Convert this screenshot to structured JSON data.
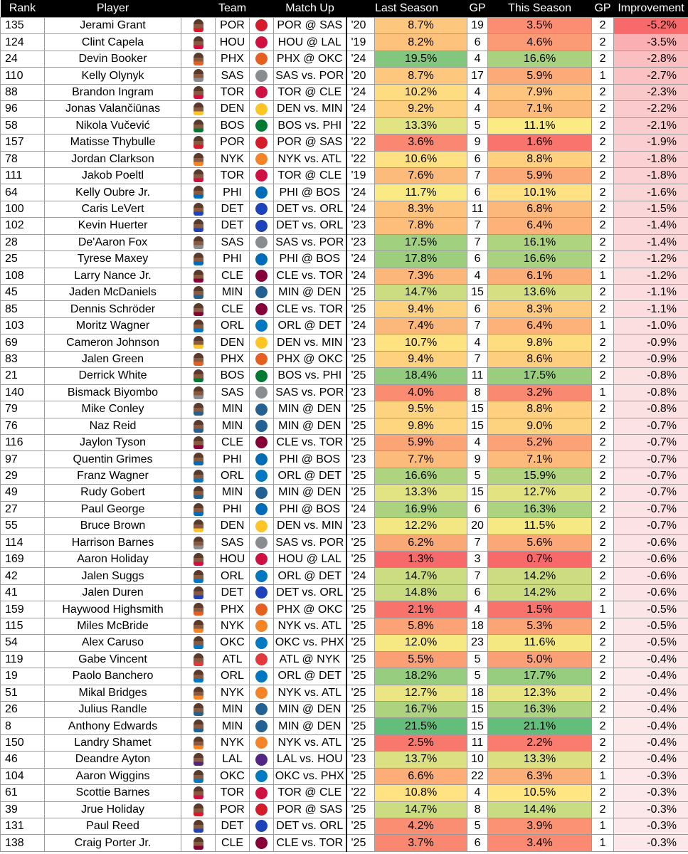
{
  "headers": {
    "rank": "Rank",
    "player": "Player",
    "team": "Team",
    "match": "Match Up",
    "last": "Last Season",
    "gp1": "GP",
    "this": "This Season",
    "gp2": "GP",
    "imp": "Improvement"
  },
  "team_colors": {
    "POR": "#d41c2c",
    "HOU": "#ce1141",
    "PHX": "#e56020",
    "SAS": "#8a8d8f",
    "TOR": "#ce1141",
    "DEN": "#fec524",
    "BOS": "#007a33",
    "NYK": "#f58426",
    "PHI": "#006bb6",
    "DET": "#1d42ba",
    "CLE": "#860038",
    "ORL": "#0077c0",
    "MIN": "#236192",
    "OKC": "#007ac1",
    "ATL": "#e03a3e",
    "LAL": "#552583"
  },
  "rows": [
    {
      "rank": "135",
      "player": "Jerami Grant",
      "team": "POR",
      "match": "POR @ SAS",
      "yr": "'20",
      "last": "8.7%",
      "gp1": "19",
      "this": "3.5%",
      "gp2": "2",
      "imp": "-5.2%"
    },
    {
      "rank": "124",
      "player": "Clint Capela",
      "team": "HOU",
      "match": "HOU @ LAL",
      "yr": "'19",
      "last": "8.2%",
      "gp1": "6",
      "this": "4.6%",
      "gp2": "2",
      "imp": "-3.5%"
    },
    {
      "rank": "24",
      "player": "Devin Booker",
      "team": "PHX",
      "match": "PHX @ OKC",
      "yr": "'24",
      "last": "19.5%",
      "gp1": "4",
      "this": "16.6%",
      "gp2": "2",
      "imp": "-2.8%"
    },
    {
      "rank": "110",
      "player": "Kelly Olynyk",
      "team": "SAS",
      "match": "SAS vs. POR",
      "yr": "'20",
      "last": "8.7%",
      "gp1": "17",
      "this": "5.9%",
      "gp2": "1",
      "imp": "-2.7%"
    },
    {
      "rank": "88",
      "player": "Brandon Ingram",
      "team": "TOR",
      "match": "TOR @ CLE",
      "yr": "'24",
      "last": "10.2%",
      "gp1": "4",
      "this": "7.9%",
      "gp2": "2",
      "imp": "-2.3%"
    },
    {
      "rank": "96",
      "player": "Jonas Valančiūnas",
      "team": "DEN",
      "match": "DEN vs. MIN",
      "yr": "'24",
      "last": "9.2%",
      "gp1": "4",
      "this": "7.1%",
      "gp2": "2",
      "imp": "-2.2%"
    },
    {
      "rank": "58",
      "player": "Nikola Vučević",
      "team": "BOS",
      "match": "BOS vs. PHI",
      "yr": "'22",
      "last": "13.3%",
      "gp1": "5",
      "this": "11.1%",
      "gp2": "2",
      "imp": "-2.1%"
    },
    {
      "rank": "157",
      "player": "Matisse Thybulle",
      "team": "POR",
      "match": "POR @ SAS",
      "yr": "'22",
      "last": "3.6%",
      "gp1": "9",
      "this": "1.6%",
      "gp2": "2",
      "imp": "-1.9%"
    },
    {
      "rank": "78",
      "player": "Jordan Clarkson",
      "team": "NYK",
      "match": "NYK vs. ATL",
      "yr": "'22",
      "last": "10.6%",
      "gp1": "6",
      "this": "8.8%",
      "gp2": "2",
      "imp": "-1.8%"
    },
    {
      "rank": "111",
      "player": "Jakob Poeltl",
      "team": "TOR",
      "match": "TOR @ CLE",
      "yr": "'19",
      "last": "7.6%",
      "gp1": "7",
      "this": "5.9%",
      "gp2": "2",
      "imp": "-1.8%"
    },
    {
      "rank": "64",
      "player": "Kelly Oubre Jr.",
      "team": "PHI",
      "match": "PHI @ BOS",
      "yr": "'24",
      "last": "11.7%",
      "gp1": "6",
      "this": "10.1%",
      "gp2": "2",
      "imp": "-1.6%"
    },
    {
      "rank": "100",
      "player": "Caris LeVert",
      "team": "DET",
      "match": "DET vs. ORL",
      "yr": "'24",
      "last": "8.3%",
      "gp1": "11",
      "this": "6.8%",
      "gp2": "2",
      "imp": "-1.5%"
    },
    {
      "rank": "102",
      "player": "Kevin Huerter",
      "team": "DET",
      "match": "DET vs. ORL",
      "yr": "'23",
      "last": "7.8%",
      "gp1": "7",
      "this": "6.4%",
      "gp2": "2",
      "imp": "-1.4%"
    },
    {
      "rank": "28",
      "player": "De'Aaron Fox",
      "team": "SAS",
      "match": "SAS vs. POR",
      "yr": "'23",
      "last": "17.5%",
      "gp1": "7",
      "this": "16.1%",
      "gp2": "2",
      "imp": "-1.4%"
    },
    {
      "rank": "25",
      "player": "Tyrese Maxey",
      "team": "PHI",
      "match": "PHI @ BOS",
      "yr": "'24",
      "last": "17.8%",
      "gp1": "6",
      "this": "16.6%",
      "gp2": "2",
      "imp": "-1.2%"
    },
    {
      "rank": "108",
      "player": "Larry Nance Jr.",
      "team": "CLE",
      "match": "CLE vs. TOR",
      "yr": "'24",
      "last": "7.3%",
      "gp1": "4",
      "this": "6.1%",
      "gp2": "1",
      "imp": "-1.2%"
    },
    {
      "rank": "45",
      "player": "Jaden McDaniels",
      "team": "MIN",
      "match": "MIN @ DEN",
      "yr": "'25",
      "last": "14.7%",
      "gp1": "15",
      "this": "13.6%",
      "gp2": "2",
      "imp": "-1.1%"
    },
    {
      "rank": "85",
      "player": "Dennis Schröder",
      "team": "CLE",
      "match": "CLE vs. TOR",
      "yr": "'25",
      "last": "9.4%",
      "gp1": "6",
      "this": "8.3%",
      "gp2": "2",
      "imp": "-1.1%"
    },
    {
      "rank": "103",
      "player": "Moritz Wagner",
      "team": "ORL",
      "match": "ORL @ DET",
      "yr": "'24",
      "last": "7.4%",
      "gp1": "7",
      "this": "6.4%",
      "gp2": "1",
      "imp": "-1.0%"
    },
    {
      "rank": "69",
      "player": "Cameron Johnson",
      "team": "DEN",
      "match": "DEN vs. MIN",
      "yr": "'23",
      "last": "10.7%",
      "gp1": "4",
      "this": "9.8%",
      "gp2": "2",
      "imp": "-0.9%"
    },
    {
      "rank": "83",
      "player": "Jalen Green",
      "team": "PHX",
      "match": "PHX @ OKC",
      "yr": "'25",
      "last": "9.4%",
      "gp1": "7",
      "this": "8.6%",
      "gp2": "2",
      "imp": "-0.9%"
    },
    {
      "rank": "21",
      "player": "Derrick White",
      "team": "BOS",
      "match": "BOS vs. PHI",
      "yr": "'25",
      "last": "18.4%",
      "gp1": "11",
      "this": "17.5%",
      "gp2": "2",
      "imp": "-0.8%"
    },
    {
      "rank": "140",
      "player": "Bismack Biyombo",
      "team": "SAS",
      "match": "SAS vs. POR",
      "yr": "'23",
      "last": "4.0%",
      "gp1": "8",
      "this": "3.2%",
      "gp2": "1",
      "imp": "-0.8%"
    },
    {
      "rank": "79",
      "player": "Mike Conley",
      "team": "MIN",
      "match": "MIN @ DEN",
      "yr": "'25",
      "last": "9.5%",
      "gp1": "15",
      "this": "8.8%",
      "gp2": "2",
      "imp": "-0.8%"
    },
    {
      "rank": "76",
      "player": "Naz Reid",
      "team": "MIN",
      "match": "MIN @ DEN",
      "yr": "'25",
      "last": "9.8%",
      "gp1": "15",
      "this": "9.0%",
      "gp2": "2",
      "imp": "-0.7%"
    },
    {
      "rank": "116",
      "player": "Jaylon Tyson",
      "team": "CLE",
      "match": "CLE vs. TOR",
      "yr": "'25",
      "last": "5.9%",
      "gp1": "4",
      "this": "5.2%",
      "gp2": "2",
      "imp": "-0.7%"
    },
    {
      "rank": "97",
      "player": "Quentin Grimes",
      "team": "PHI",
      "match": "PHI @ BOS",
      "yr": "'23",
      "last": "7.7%",
      "gp1": "9",
      "this": "7.1%",
      "gp2": "2",
      "imp": "-0.7%"
    },
    {
      "rank": "29",
      "player": "Franz Wagner",
      "team": "ORL",
      "match": "ORL @ DET",
      "yr": "'25",
      "last": "16.6%",
      "gp1": "5",
      "this": "15.9%",
      "gp2": "2",
      "imp": "-0.7%"
    },
    {
      "rank": "49",
      "player": "Rudy Gobert",
      "team": "MIN",
      "match": "MIN @ DEN",
      "yr": "'25",
      "last": "13.3%",
      "gp1": "15",
      "this": "12.7%",
      "gp2": "2",
      "imp": "-0.7%"
    },
    {
      "rank": "27",
      "player": "Paul George",
      "team": "PHI",
      "match": "PHI @ BOS",
      "yr": "'24",
      "last": "16.9%",
      "gp1": "6",
      "this": "16.3%",
      "gp2": "2",
      "imp": "-0.7%"
    },
    {
      "rank": "55",
      "player": "Bruce Brown",
      "team": "DEN",
      "match": "DEN vs. MIN",
      "yr": "'23",
      "last": "12.2%",
      "gp1": "20",
      "this": "11.5%",
      "gp2": "2",
      "imp": "-0.7%"
    },
    {
      "rank": "114",
      "player": "Harrison Barnes",
      "team": "SAS",
      "match": "SAS vs. POR",
      "yr": "'25",
      "last": "6.2%",
      "gp1": "7",
      "this": "5.6%",
      "gp2": "2",
      "imp": "-0.6%"
    },
    {
      "rank": "169",
      "player": "Aaron Holiday",
      "team": "HOU",
      "match": "HOU @ LAL",
      "yr": "'25",
      "last": "1.3%",
      "gp1": "3",
      "this": "0.7%",
      "gp2": "2",
      "imp": "-0.6%"
    },
    {
      "rank": "42",
      "player": "Jalen Suggs",
      "team": "ORL",
      "match": "ORL @ DET",
      "yr": "'24",
      "last": "14.7%",
      "gp1": "7",
      "this": "14.2%",
      "gp2": "2",
      "imp": "-0.6%"
    },
    {
      "rank": "41",
      "player": "Jalen Duren",
      "team": "DET",
      "match": "DET vs. ORL",
      "yr": "'25",
      "last": "14.8%",
      "gp1": "6",
      "this": "14.2%",
      "gp2": "2",
      "imp": "-0.6%"
    },
    {
      "rank": "159",
      "player": "Haywood Highsmith",
      "team": "PHX",
      "match": "PHX @ OKC",
      "yr": "'25",
      "last": "2.1%",
      "gp1": "4",
      "this": "1.5%",
      "gp2": "1",
      "imp": "-0.5%"
    },
    {
      "rank": "115",
      "player": "Miles McBride",
      "team": "NYK",
      "match": "NYK vs. ATL",
      "yr": "'25",
      "last": "5.8%",
      "gp1": "18",
      "this": "5.3%",
      "gp2": "2",
      "imp": "-0.5%"
    },
    {
      "rank": "54",
      "player": "Alex Caruso",
      "team": "OKC",
      "match": "OKC vs. PHX",
      "yr": "'25",
      "last": "12.0%",
      "gp1": "23",
      "this": "11.6%",
      "gp2": "2",
      "imp": "-0.5%"
    },
    {
      "rank": "119",
      "player": "Gabe Vincent",
      "team": "ATL",
      "match": "ATL @ NYK",
      "yr": "'25",
      "last": "5.5%",
      "gp1": "5",
      "this": "5.0%",
      "gp2": "2",
      "imp": "-0.4%"
    },
    {
      "rank": "19",
      "player": "Paolo Banchero",
      "team": "ORL",
      "match": "ORL @ DET",
      "yr": "'25",
      "last": "18.2%",
      "gp1": "5",
      "this": "17.7%",
      "gp2": "2",
      "imp": "-0.4%"
    },
    {
      "rank": "51",
      "player": "Mikal Bridges",
      "team": "NYK",
      "match": "NYK vs. ATL",
      "yr": "'25",
      "last": "12.7%",
      "gp1": "18",
      "this": "12.3%",
      "gp2": "2",
      "imp": "-0.4%"
    },
    {
      "rank": "26",
      "player": "Julius Randle",
      "team": "MIN",
      "match": "MIN @ DEN",
      "yr": "'25",
      "last": "16.7%",
      "gp1": "15",
      "this": "16.3%",
      "gp2": "2",
      "imp": "-0.4%"
    },
    {
      "rank": "8",
      "player": "Anthony Edwards",
      "team": "MIN",
      "match": "MIN @ DEN",
      "yr": "'25",
      "last": "21.5%",
      "gp1": "15",
      "this": "21.1%",
      "gp2": "2",
      "imp": "-0.4%"
    },
    {
      "rank": "150",
      "player": "Landry Shamet",
      "team": "NYK",
      "match": "NYK vs. ATL",
      "yr": "'25",
      "last": "2.5%",
      "gp1": "11",
      "this": "2.2%",
      "gp2": "2",
      "imp": "-0.4%"
    },
    {
      "rank": "46",
      "player": "Deandre Ayton",
      "team": "LAL",
      "match": "LAL vs. HOU",
      "yr": "'23",
      "last": "13.7%",
      "gp1": "10",
      "this": "13.3%",
      "gp2": "2",
      "imp": "-0.4%"
    },
    {
      "rank": "104",
      "player": "Aaron Wiggins",
      "team": "OKC",
      "match": "OKC vs. PHX",
      "yr": "'25",
      "last": "6.6%",
      "gp1": "22",
      "this": "6.3%",
      "gp2": "1",
      "imp": "-0.3%"
    },
    {
      "rank": "61",
      "player": "Scottie Barnes",
      "team": "TOR",
      "match": "TOR @ CLE",
      "yr": "'22",
      "last": "10.8%",
      "gp1": "4",
      "this": "10.5%",
      "gp2": "2",
      "imp": "-0.3%"
    },
    {
      "rank": "39",
      "player": "Jrue Holiday",
      "team": "POR",
      "match": "POR @ SAS",
      "yr": "'25",
      "last": "14.7%",
      "gp1": "8",
      "this": "14.4%",
      "gp2": "2",
      "imp": "-0.3%"
    },
    {
      "rank": "131",
      "player": "Paul Reed",
      "team": "DET",
      "match": "DET vs. ORL",
      "yr": "'25",
      "last": "4.2%",
      "gp1": "5",
      "this": "3.9%",
      "gp2": "1",
      "imp": "-0.3%"
    },
    {
      "rank": "138",
      "player": "Craig Porter Jr.",
      "team": "CLE",
      "match": "CLE vs. TOR",
      "yr": "'25",
      "last": "3.7%",
      "gp1": "6",
      "this": "3.4%",
      "gp2": "1",
      "imp": "-0.3%"
    }
  ]
}
